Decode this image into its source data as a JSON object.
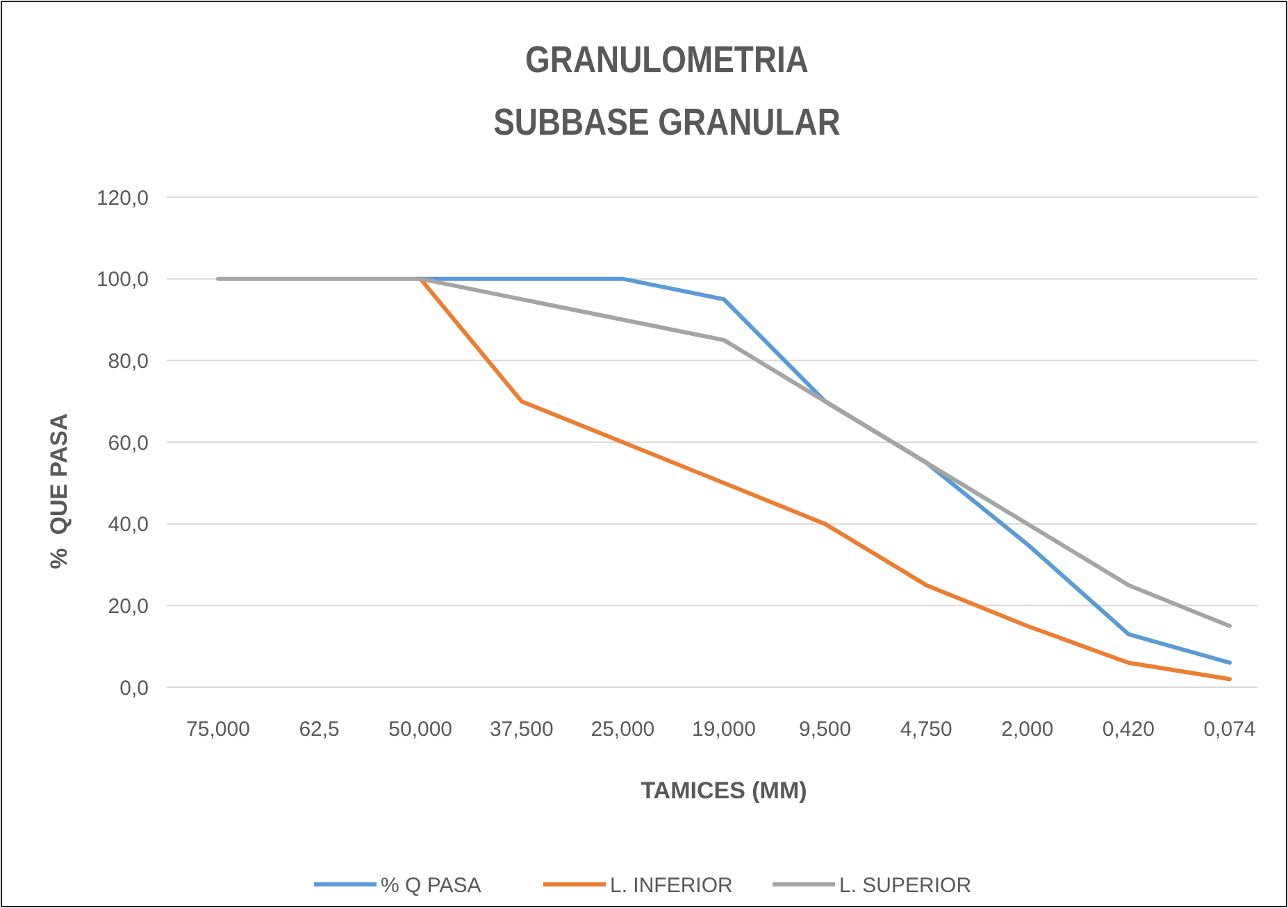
{
  "chart_data": {
    "type": "line",
    "title": "GRANULOMETRIA\nSUBBASE GRANULAR",
    "xlabel": "TAMICES (MM)",
    "ylabel": "%  QUE PASA",
    "categories": [
      "75,000",
      "62,5",
      "50,000",
      "37,500",
      "25,000",
      "19,000",
      "9,500",
      "4,750",
      "2,000",
      "0,420",
      "0,074"
    ],
    "series": [
      {
        "name": "% Q PASA",
        "color": "#5b9bd5",
        "values": [
          null,
          null,
          100,
          100,
          100,
          95,
          70,
          55,
          35,
          13,
          6
        ]
      },
      {
        "name": "L. INFERIOR",
        "color": "#ed7d31",
        "values": [
          null,
          null,
          100,
          70,
          60,
          50,
          40,
          25,
          15,
          6,
          2
        ]
      },
      {
        "name": "L. SUPERIOR",
        "color": "#a5a5a5",
        "values": [
          100,
          100,
          100,
          95,
          90,
          85,
          70,
          55,
          40,
          25,
          15
        ]
      }
    ],
    "ylim": [
      0,
      120
    ],
    "yticks": [
      {
        "value": 0,
        "label": "0,0"
      },
      {
        "value": 20,
        "label": "20,0"
      },
      {
        "value": 40,
        "label": "40,0"
      },
      {
        "value": 60,
        "label": "60,0"
      },
      {
        "value": 80,
        "label": "80,0"
      },
      {
        "value": 100,
        "label": "100,0"
      },
      {
        "value": 120,
        "label": "120,0"
      }
    ],
    "grid": "y",
    "legend": "bottom",
    "marker": "none",
    "line_style": "solid"
  }
}
